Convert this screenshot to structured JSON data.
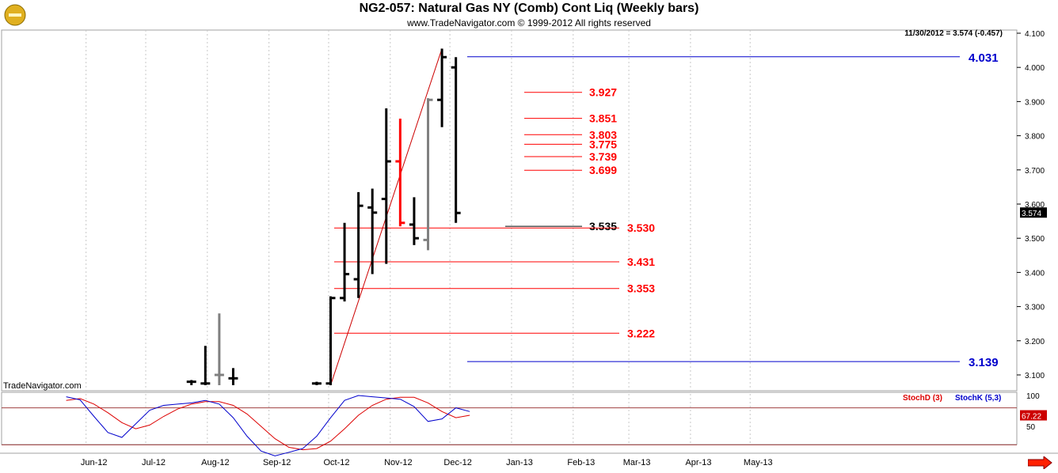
{
  "header": {
    "title": "NG2-057:  Natural Gas NY (Comb) Cont Liq  (Weekly bars)",
    "subtitle": "www.TradeNavigator.com © 1999-2012 All rights reserved",
    "last_info": "11/30/2012 = 3.574 (-0.457)",
    "watermark": "TradeNavigator.com"
  },
  "colors": {
    "bar_up": "#000000",
    "bar_neutral": "#808080",
    "bar_red": "#ff0000",
    "fib_red": "#ff0000",
    "level_blue": "#0000cc",
    "stoch_d": "#dd0000",
    "stoch_k": "#0000cc"
  },
  "chart_data": [
    {
      "type": "ohlc",
      "title": "NG2-057:  Natural Gas NY (Comb) Cont Liq  (Weekly bars)",
      "x_labels": [
        "Jun-12",
        "Jul-12",
        "Aug-12",
        "Sep-12",
        "Oct-12",
        "Nov-12",
        "Dec-12",
        "Jan-13",
        "Feb-13",
        "Mar-13",
        "Apr-13",
        "May-13"
      ],
      "y_ticks": [
        3.1,
        3.2,
        3.3,
        3.4,
        3.5,
        3.6,
        3.7,
        3.8,
        3.9,
        4.0,
        4.1
      ],
      "ylim": [
        3.075,
        4.125
      ],
      "last_value_label": "3.574",
      "bars": [
        {
          "date": "2012-07-24",
          "high": 3.085,
          "low": 3.07,
          "open": 3.08,
          "close": 3.08,
          "color": "black"
        },
        {
          "date": "2012-07-31",
          "high": 3.185,
          "low": 3.07,
          "open": 3.075,
          "close": 3.075,
          "color": "black"
        },
        {
          "date": "2012-08-07",
          "high": 3.28,
          "low": 3.07,
          "open": 3.1,
          "close": 3.1,
          "color": "gray"
        },
        {
          "date": "2012-08-14",
          "high": 3.12,
          "low": 3.07,
          "open": 3.09,
          "close": 3.09,
          "color": "black"
        },
        {
          "date": "2012-09-25",
          "high": 3.08,
          "low": 3.07,
          "open": 3.075,
          "close": 3.075,
          "color": "black"
        },
        {
          "date": "2012-10-02",
          "high": 3.33,
          "low": 3.07,
          "open": 3.075,
          "close": 3.325,
          "color": "black"
        },
        {
          "date": "2012-10-09",
          "high": 3.545,
          "low": 3.315,
          "open": 3.325,
          "close": 3.395,
          "color": "black"
        },
        {
          "date": "2012-10-16",
          "high": 3.635,
          "low": 3.325,
          "open": 3.38,
          "close": 3.595,
          "color": "black"
        },
        {
          "date": "2012-10-23",
          "high": 3.645,
          "low": 3.395,
          "open": 3.59,
          "close": 3.575,
          "color": "black"
        },
        {
          "date": "2012-10-30",
          "high": 3.88,
          "low": 3.425,
          "open": 3.615,
          "close": 3.725,
          "color": "black"
        },
        {
          "date": "2012-11-06",
          "high": 3.85,
          "low": 3.535,
          "open": 3.725,
          "close": 3.545,
          "color": "red"
        },
        {
          "date": "2012-11-13",
          "high": 3.62,
          "low": 3.48,
          "open": 3.54,
          "close": 3.5,
          "color": "black"
        },
        {
          "date": "2012-11-20",
          "high": 3.91,
          "low": 3.465,
          "open": 3.495,
          "close": 3.905,
          "color": "gray"
        },
        {
          "date": "2012-11-27",
          "high": 4.055,
          "low": 3.825,
          "open": 3.905,
          "close": 4.03,
          "color": "black"
        },
        {
          "date": "2012-12-04",
          "high": 4.03,
          "low": 3.545,
          "open": 4.0,
          "close": 3.574,
          "color": "black"
        }
      ],
      "swing_line": {
        "from": {
          "date": "2012-10-02",
          "value": 3.07
        },
        "to": {
          "date": "2012-11-27",
          "value": 4.055
        }
      },
      "levels_blue": [
        {
          "value": 4.031,
          "label": "4.031"
        },
        {
          "value": 3.139,
          "label": "3.139"
        }
      ],
      "fib_upper": [
        {
          "value": 3.927,
          "label": "3.927"
        },
        {
          "value": 3.851,
          "label": "3.851"
        },
        {
          "value": 3.803,
          "label": "3.803"
        },
        {
          "value": 3.775,
          "label": "3.775"
        },
        {
          "value": 3.739,
          "label": "3.739"
        },
        {
          "value": 3.699,
          "label": "3.699"
        }
      ],
      "fib_black": {
        "value": 3.535,
        "label": "3.535"
      },
      "fib_lower": [
        {
          "value": 3.53,
          "label": "3.530"
        },
        {
          "value": 3.431,
          "label": "3.431"
        },
        {
          "value": 3.353,
          "label": "3.353"
        },
        {
          "value": 3.222,
          "label": "3.222"
        }
      ]
    },
    {
      "type": "line",
      "title": "Stochastics",
      "ylim": [
        0,
        100
      ],
      "y_ticks": [
        50,
        100
      ],
      "last_value_label": "67.22",
      "legend": [
        "StochD (3)",
        "StochK (5,3)"
      ],
      "series": [
        {
          "name": "StochD (3)",
          "color": "red",
          "points": [
            [
              "2012-05-22",
              92
            ],
            [
              "2012-05-29",
              95
            ],
            [
              "2012-06-05",
              86
            ],
            [
              "2012-06-12",
              72
            ],
            [
              "2012-06-19",
              56
            ],
            [
              "2012-06-26",
              46
            ],
            [
              "2012-07-03",
              52
            ],
            [
              "2012-07-10",
              66
            ],
            [
              "2012-07-17",
              78
            ],
            [
              "2012-07-24",
              86
            ],
            [
              "2012-07-31",
              90
            ],
            [
              "2012-08-07",
              90
            ],
            [
              "2012-08-14",
              84
            ],
            [
              "2012-08-21",
              70
            ],
            [
              "2012-08-28",
              50
            ],
            [
              "2012-09-04",
              30
            ],
            [
              "2012-09-11",
              16
            ],
            [
              "2012-09-18",
              12
            ],
            [
              "2012-09-25",
              14
            ],
            [
              "2012-10-02",
              26
            ],
            [
              "2012-10-09",
              46
            ],
            [
              "2012-10-16",
              68
            ],
            [
              "2012-10-23",
              84
            ],
            [
              "2012-10-30",
              94
            ],
            [
              "2012-11-06",
              97
            ],
            [
              "2012-11-13",
              97
            ],
            [
              "2012-11-20",
              88
            ],
            [
              "2012-11-27",
              74
            ],
            [
              "2012-12-04",
              64
            ],
            [
              "2012-12-11",
              68
            ]
          ]
        },
        {
          "name": "StochK (5,3)",
          "color": "blue",
          "points": [
            [
              "2012-05-22",
              98
            ],
            [
              "2012-05-29",
              93
            ],
            [
              "2012-06-05",
              66
            ],
            [
              "2012-06-12",
              40
            ],
            [
              "2012-06-19",
              32
            ],
            [
              "2012-06-26",
              54
            ],
            [
              "2012-07-03",
              76
            ],
            [
              "2012-07-10",
              84
            ],
            [
              "2012-07-17",
              86
            ],
            [
              "2012-07-24",
              88
            ],
            [
              "2012-07-31",
              92
            ],
            [
              "2012-08-07",
              86
            ],
            [
              "2012-08-14",
              64
            ],
            [
              "2012-08-21",
              34
            ],
            [
              "2012-08-28",
              10
            ],
            [
              "2012-09-04",
              2
            ],
            [
              "2012-09-11",
              8
            ],
            [
              "2012-09-18",
              14
            ],
            [
              "2012-09-25",
              34
            ],
            [
              "2012-10-02",
              64
            ],
            [
              "2012-10-09",
              92
            ],
            [
              "2012-10-16",
              100
            ],
            [
              "2012-10-23",
              98
            ],
            [
              "2012-10-30",
              96
            ],
            [
              "2012-11-06",
              94
            ],
            [
              "2012-11-13",
              82
            ],
            [
              "2012-11-20",
              58
            ],
            [
              "2012-11-27",
              62
            ],
            [
              "2012-12-04",
              80
            ],
            [
              "2012-12-11",
              74
            ]
          ]
        }
      ]
    }
  ]
}
